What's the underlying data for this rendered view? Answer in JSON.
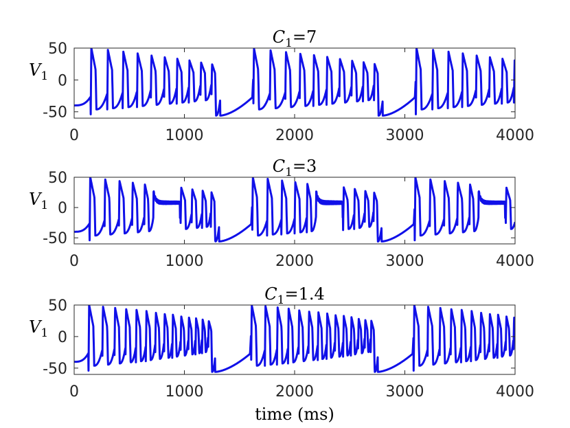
{
  "chart_data": [
    {
      "type": "line",
      "title": {
        "symbol": "C",
        "subscript": "1",
        "rest": "=7"
      },
      "ylabel": {
        "symbol": "V",
        "subscript": "1"
      },
      "xlim": [
        0,
        4000
      ],
      "ylim": [
        -60,
        50
      ],
      "xticks": [
        "0",
        "1000",
        "2000",
        "3000",
        "4000"
      ],
      "yticks": [
        "50",
        "0",
        "-50"
      ],
      "line_color": "#1010E8",
      "params": {
        "period": 1475,
        "start": 150,
        "spike_times": [
          0,
          150,
          290,
          420,
          545,
          665,
          780,
          890,
          995,
          1095
        ],
        "silent_start": 1175,
        "trough": -56,
        "peak_first": 50,
        "peak_last": 25,
        "tonic_segment": null
      }
    },
    {
      "type": "line",
      "title": {
        "symbol": "C",
        "subscript": "1",
        "rest": "=3"
      },
      "ylabel": {
        "symbol": "V",
        "subscript": "1"
      },
      "xlim": [
        0,
        4000
      ],
      "ylim": [
        -60,
        50
      ],
      "xticks": [
        "0",
        "1000",
        "2000",
        "3000",
        "4000"
      ],
      "yticks": [
        "50",
        "0",
        "-50"
      ],
      "line_color": "#1010E8",
      "params": {
        "period": 1475,
        "start": 140,
        "spike_times": [
          0,
          135,
          265,
          385,
          495,
          720,
          825,
          925,
          1020,
          1100
        ],
        "silent_start": 1175,
        "trough": -56,
        "peak_first": 50,
        "peak_last": 25,
        "tonic_segment": [
          580,
          820,
          8
        ]
      }
    },
    {
      "type": "line",
      "title": {
        "symbol": "C",
        "subscript": "1",
        "rest": "=1.4"
      },
      "ylabel": {
        "symbol": "V",
        "subscript": "1"
      },
      "xlabel": "time (ms)",
      "xlim": [
        0,
        4000
      ],
      "ylim": [
        -60,
        50
      ],
      "xticks": [
        "0",
        "1000",
        "2000",
        "3000",
        "4000"
      ],
      "yticks": [
        "50",
        "0",
        "-50"
      ],
      "line_color": "#1010E8",
      "params": {
        "period": 1475,
        "start": 130,
        "spike_times": [
          0,
          125,
          235,
          335,
          430,
          520,
          605,
          685,
          760,
          835,
          905,
          970,
          1030,
          1085
        ],
        "silent_start": 1150,
        "trough": -56,
        "peak_first": 50,
        "peak_last": 25,
        "tonic_segment": null
      }
    }
  ]
}
